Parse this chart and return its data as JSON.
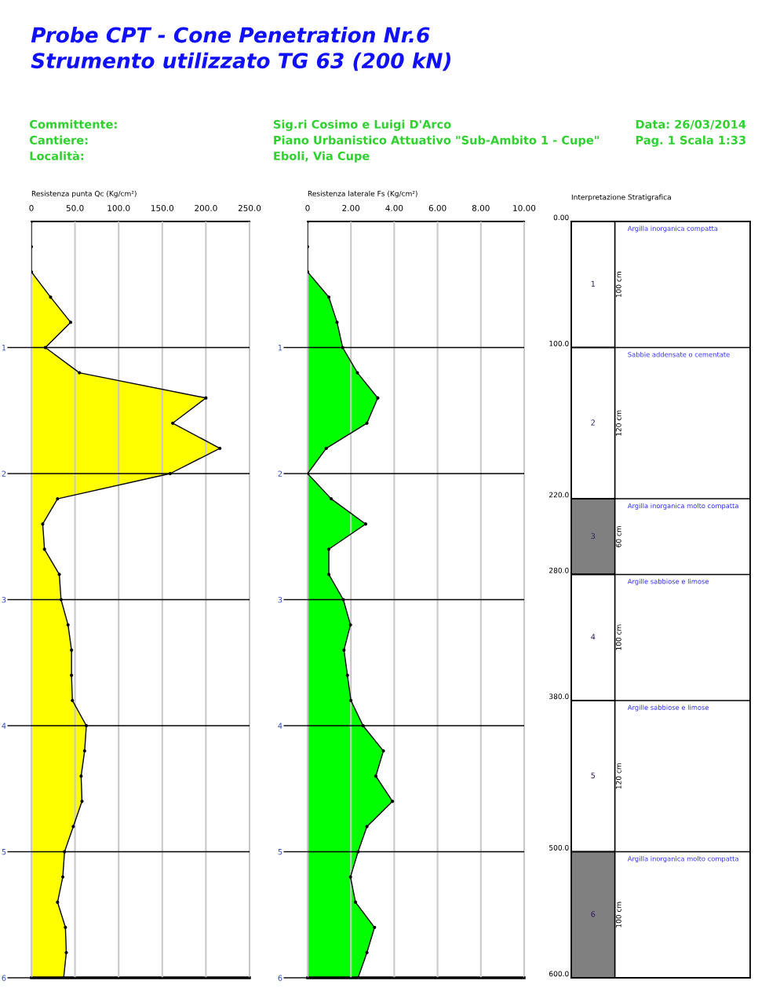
{
  "chart_data": [
    {
      "type": "area",
      "title": "Probe CPT - Cone Penetration Nr.6",
      "subtitle": "Strumento utilizzato TG 63 (200 kN)",
      "xlabel": "Resistenza punta Qc (Kg/cm²)",
      "annotations": [
        "Committente:",
        "Cantiere:",
        "Località:",
        "Sig.ri Cosimo e Luigi D'Arco",
        "Piano Urbanistico Attuativo \"Sub-Ambito 1 - Cupe\"",
        "Eboli, Via Cupe",
        "Data: 26/03/2014",
        "Pag. 1 Scala 1:33"
      ],
      "orientation": "horizontal",
      "x": [
        0,
        0.2,
        0.4,
        0.6,
        0.8,
        1.0,
        1.2,
        1.4,
        1.6,
        1.8,
        2.0,
        2.2,
        2.4,
        2.6,
        2.8,
        3.0,
        3.2,
        3.4,
        3.6,
        3.8,
        4.0,
        4.2,
        4.4,
        4.6,
        4.8,
        5.0,
        5.2,
        5.4,
        5.6,
        5.8,
        6.0
      ],
      "series": [
        {
          "color": "#ffff00",
          "values": [
            0,
            0,
            0,
            22,
            45,
            16,
            55,
            200,
            162,
            216,
            159,
            30,
            13,
            15,
            32,
            34,
            42,
            46,
            46,
            47,
            63,
            61,
            57,
            58,
            48,
            38,
            36,
            30,
            39,
            40,
            37
          ]
        }
      ],
      "xlim": [
        0,
        250
      ],
      "xticks": [
        0,
        {
          "value": 50,
          "label": "50.0"
        },
        {
          "value": 100,
          "label": "100.0"
        },
        {
          "value": 150,
          "label": "150.0"
        },
        {
          "value": 200,
          "label": "200.0"
        },
        {
          "value": 250,
          "label": "250.0"
        }
      ],
      "ylim": [
        6,
        0
      ],
      "yticks": [
        1,
        2,
        3,
        4,
        5,
        6
      ],
      "grid": true,
      "marker": "circle"
    },
    {
      "type": "area",
      "xlabel": "Resistenza laterale Fs (Kg/cm²)",
      "orientation": "horizontal",
      "x": [
        0,
        0.2,
        0.4,
        0.6,
        0.8,
        1.0,
        1.2,
        1.4,
        1.6,
        1.8,
        2.0,
        2.2,
        2.4,
        2.6,
        2.8,
        3.0,
        3.2,
        3.4,
        3.6,
        3.8,
        4.0,
        4.2,
        4.4,
        4.6,
        4.8,
        5.0,
        5.2,
        5.4,
        5.6,
        5.8,
        6.0
      ],
      "series": [
        {
          "color": "#00ff00",
          "values": [
            0,
            0,
            0,
            0.98,
            1.36,
            1.62,
            2.3,
            3.24,
            2.74,
            0.86,
            0,
            1.09,
            2.68,
            0.98,
            0.98,
            1.65,
            1.98,
            1.68,
            1.84,
            2.0,
            2.56,
            3.5,
            3.15,
            3.92,
            2.74,
            2.33,
            1.98,
            2.21,
            3.09,
            2.74,
            2.33
          ]
        }
      ],
      "xlim": [
        0,
        10
      ],
      "xticks": [
        0,
        {
          "value": 2,
          "label": "2.00"
        },
        {
          "value": 4,
          "label": "4.00"
        },
        {
          "value": 6,
          "label": "6.00"
        },
        {
          "value": 8,
          "label": "8.00"
        },
        {
          "value": 10,
          "label": "10.00"
        }
      ],
      "ylim": [
        6,
        0
      ],
      "yticks": [
        1,
        2,
        3,
        4,
        5,
        6
      ],
      "grid": true,
      "marker": "circle"
    },
    {
      "type": "bar",
      "title": "Interpretazione Stratigrafica",
      "stacked": true,
      "categories": [
        null
      ],
      "series": [
        {
          "name": "1",
          "color": "#ffffff",
          "values": [
            100
          ],
          "value_labels": [
            "100 cm"
          ]
        },
        {
          "name": "2",
          "color": "#ffffff",
          "values": [
            120
          ],
          "value_labels": [
            "120 cm"
          ]
        },
        {
          "name": "3",
          "color": "#808080",
          "values": [
            60
          ],
          "value_labels": [
            "60 cm"
          ]
        },
        {
          "name": "4",
          "color": "#ffffff",
          "values": [
            100
          ],
          "value_labels": [
            "100 cm"
          ]
        },
        {
          "name": "5",
          "color": "#ffffff",
          "values": [
            120
          ],
          "value_labels": [
            "120 cm"
          ]
        },
        {
          "name": "6",
          "color": "#808080",
          "values": [
            100
          ],
          "value_labels": [
            "100 cm"
          ]
        }
      ],
      "annotations": [
        "Argilla inorganica compatta",
        "Sabbie addensate o cementate",
        "Argilla inorganica molto compatta",
        "Argille sabbiose e limose",
        "Argille sabbiose e limose",
        "Argilla inorganica molto compatta"
      ],
      "ylim": [
        600,
        0
      ],
      "yticks": [
        {
          "value": 0,
          "label": "0.00"
        },
        {
          "value": 100,
          "label": "100.0"
        },
        {
          "value": 220,
          "label": "220.0"
        },
        {
          "value": 280,
          "label": "280.0"
        },
        {
          "value": 380,
          "label": "380.0"
        },
        {
          "value": 500,
          "label": "500.0"
        },
        {
          "value": 600,
          "label": "600.0"
        }
      ],
      "grid": "y"
    }
  ]
}
